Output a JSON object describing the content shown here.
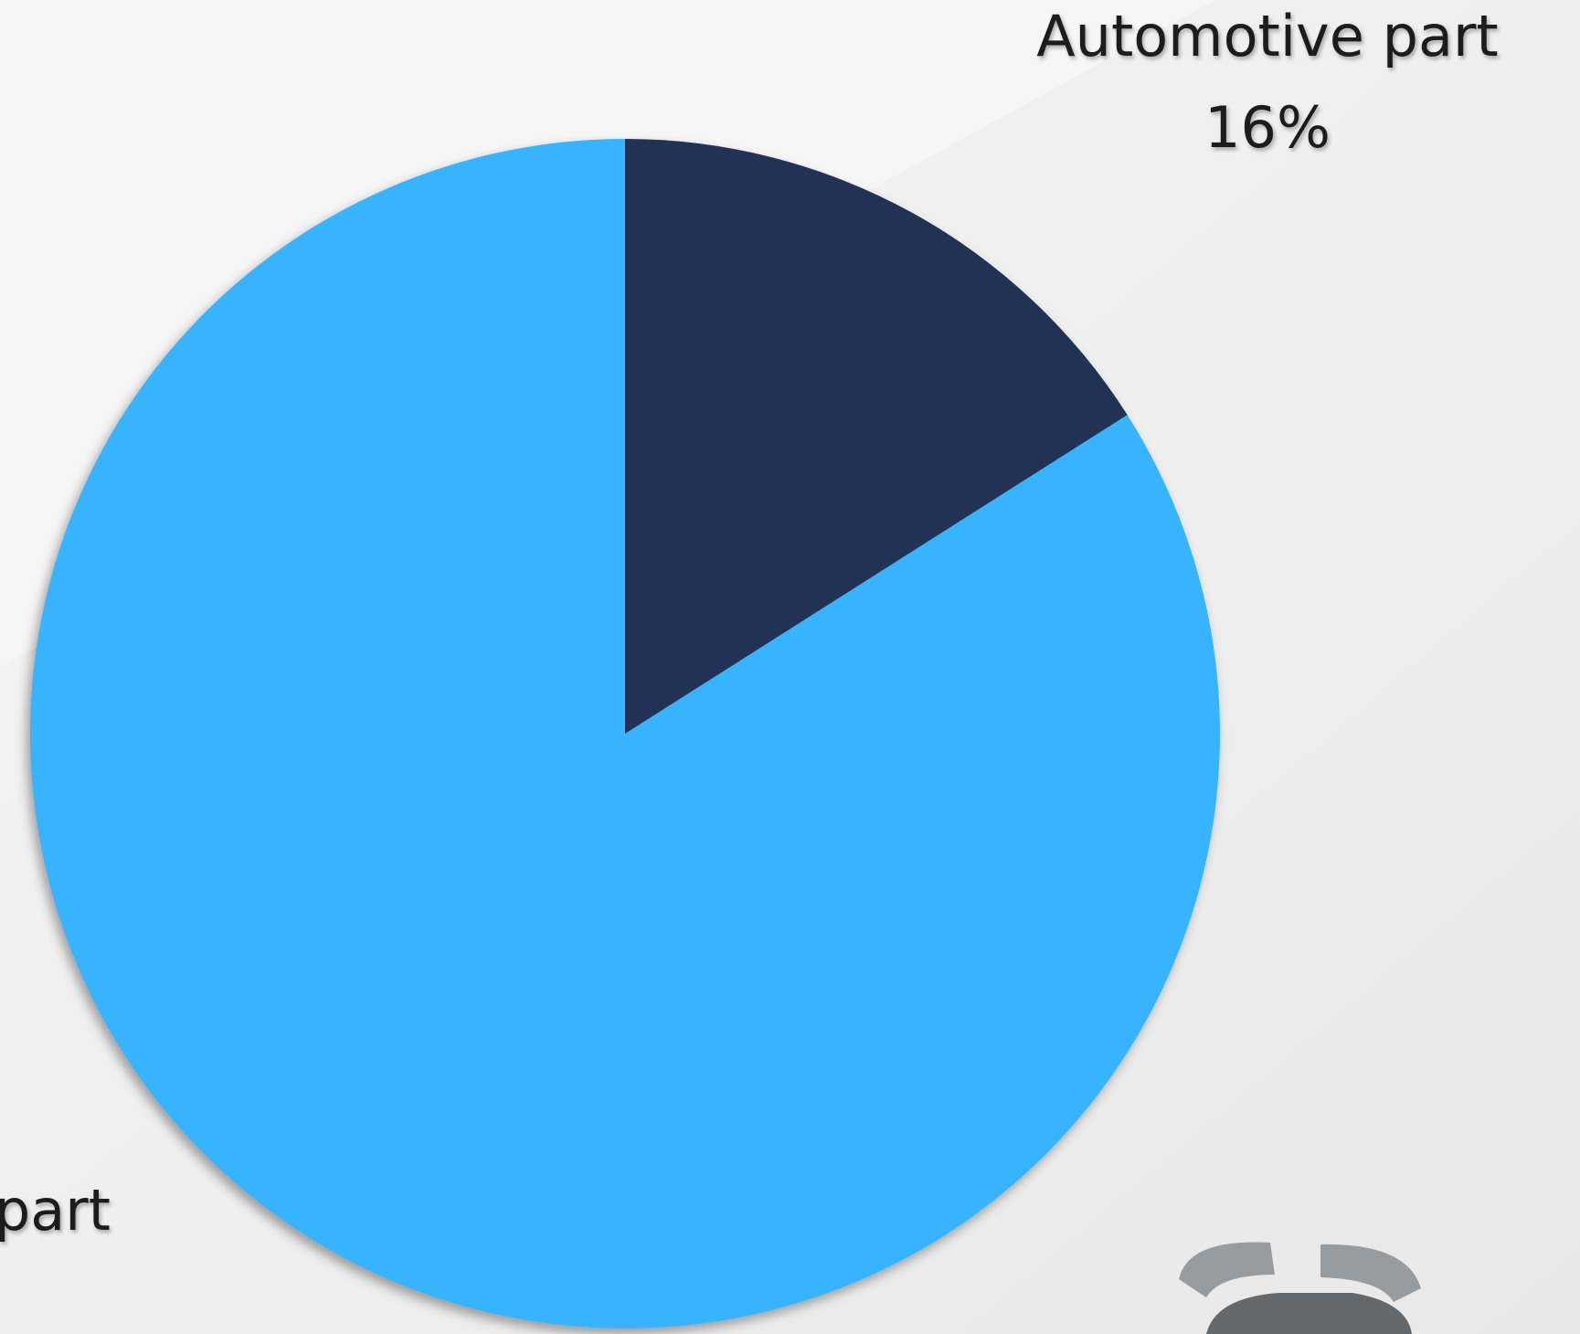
{
  "chart_data": {
    "type": "pie",
    "categories": [
      "Automotive part",
      "part"
    ],
    "values": [
      16,
      84
    ],
    "value_labels": [
      "16%",
      null
    ],
    "colors": [
      "#223355",
      "#38b3fd"
    ]
  }
}
